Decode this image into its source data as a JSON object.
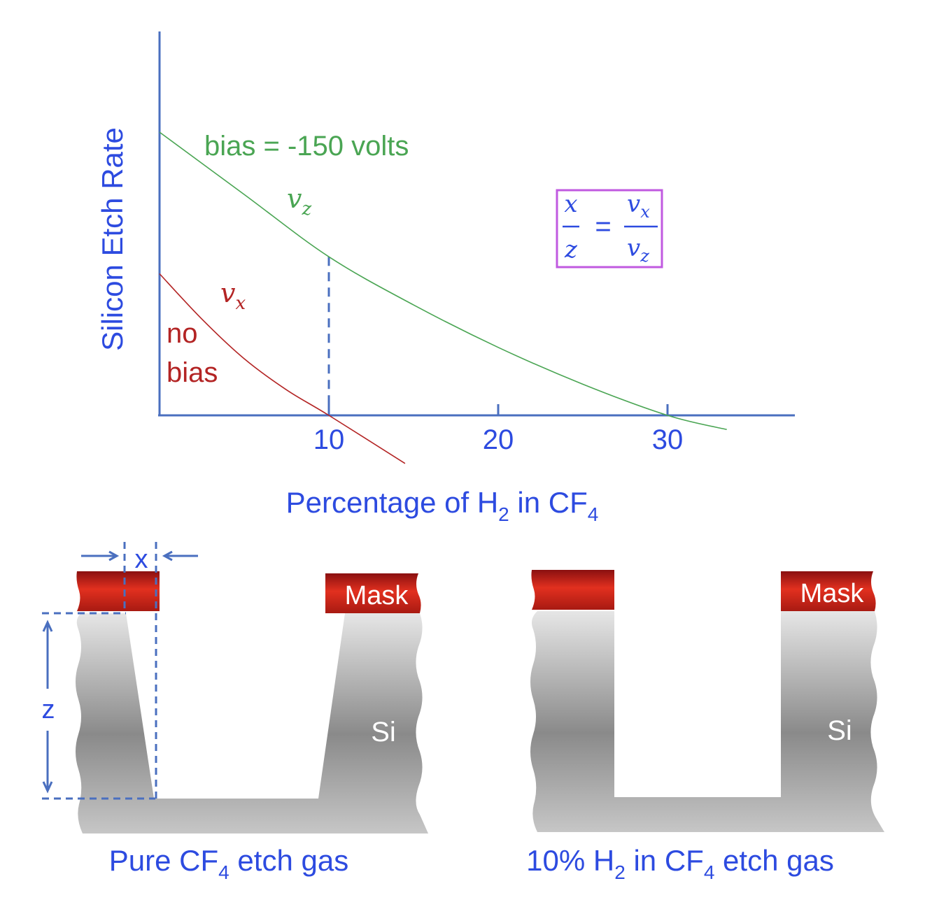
{
  "chart_data": {
    "type": "line",
    "xlabel": "Percentage of H",
    "xlabel_sub1": "2",
    "xlabel_mid": " in CF",
    "xlabel_sub2": "4",
    "ylabel": "Silicon Etch Rate",
    "xticks": [
      "10",
      "20",
      "30"
    ],
    "xlim": [
      0,
      37
    ],
    "series": [
      {
        "name": "bias = -150 volts",
        "curve_label": "v",
        "curve_label_sub": "z",
        "color": "#4aa553",
        "x": [
          0,
          5,
          10,
          15,
          20,
          25,
          30,
          33.5
        ],
        "y": [
          100,
          78,
          56,
          39,
          24,
          11,
          0,
          -5
        ]
      },
      {
        "name": "no bias",
        "name_line1": "no",
        "name_line2": "bias",
        "curve_label": "v",
        "curve_label_sub": "x",
        "color": "#b32424",
        "x": [
          0,
          2.5,
          5,
          7.5,
          10,
          14.5
        ],
        "y": [
          50,
          34,
          20,
          9,
          0,
          -17
        ]
      }
    ],
    "marker_x": 10
  },
  "formula": {
    "num_left": "x",
    "den_left": "z",
    "equals": "=",
    "num_right": "v",
    "num_right_sub": "x",
    "den_right": "v",
    "den_right_sub": "z"
  },
  "left_panel": {
    "mask_label": "Mask",
    "si_label": "Si",
    "x_dim": "x",
    "z_dim": "z",
    "caption_a": "Pure CF",
    "caption_sub": "4",
    "caption_b": " etch gas"
  },
  "right_panel": {
    "mask_label": "Mask",
    "si_label": "Si",
    "caption_a": "10% H",
    "caption_sub1": "2",
    "caption_b": " in CF",
    "caption_sub2": "4",
    "caption_c": " etch gas"
  },
  "colors": {
    "axis": "#4a6fbf",
    "text_blue": "#2d4be0",
    "dim": "#4a6fbf",
    "mask": "#d42a1e",
    "formula_box": "#c05ae0"
  }
}
